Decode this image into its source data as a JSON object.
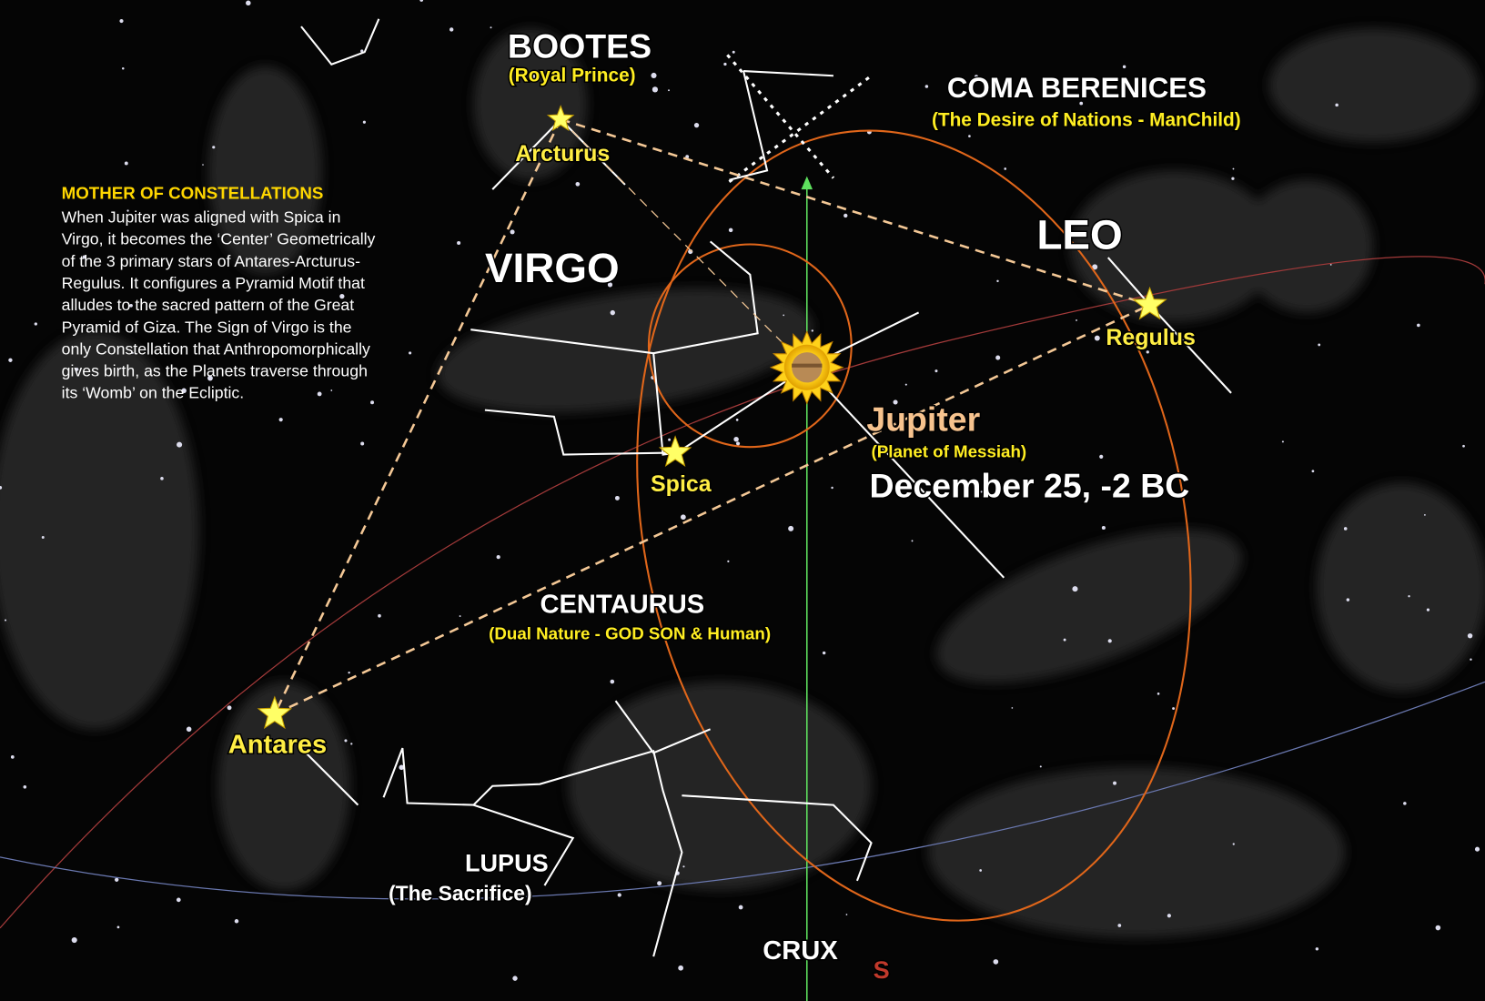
{
  "sidebar": {
    "heading": "MOTHER OF CONSTELLATIONS",
    "body_lines": [
      "When Jupiter was aligned with Spica in",
      "Virgo, it becomes the ‘Center’ Geometrically",
      "of the 3 primary stars of Antares-Arcturus-",
      "Regulus. It configures a Pyramid Motif that",
      "alludes to the sacred pattern of the Great",
      "Pyramid of Giza. The Sign of Virgo is the",
      "only Constellation that Anthropomorphically",
      "gives birth, as the Planets traverse through",
      "its ‘Womb’ on the Ecliptic."
    ]
  },
  "constellations": [
    {
      "name": "BOOTES",
      "subtitle": "(Royal Prince)"
    },
    {
      "name": "COMA BERENICES",
      "subtitle": "(The Desire of Nations - ManChild)"
    },
    {
      "name": "VIRGO"
    },
    {
      "name": "LEO"
    },
    {
      "name": "CENTAURUS",
      "subtitle": "(Dual Nature - GOD SON & Human)"
    },
    {
      "name": "LUPUS",
      "subtitle": "(The Sacrifice)"
    },
    {
      "name": "CRUX"
    }
  ],
  "stars": [
    {
      "name": "Arcturus"
    },
    {
      "name": "Regulus"
    },
    {
      "name": "Spica"
    },
    {
      "name": "Antares"
    }
  ],
  "jupiter": {
    "name": "Jupiter",
    "subtitle": "(Planet of Messiah)",
    "date": "December 25, -2 BC"
  },
  "direction": "S"
}
